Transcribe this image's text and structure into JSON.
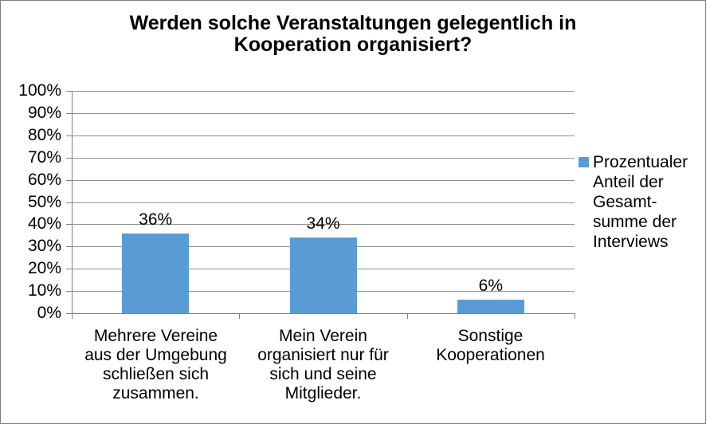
{
  "chart_data": {
    "type": "bar",
    "title": "Werden solche Veranstaltungen gelegentlich in\nKooperation organisiert?",
    "categories": [
      "Mehrere Vereine\naus der Umgebung\nschließen sich\nzusammen.",
      "Mein Verein\norganisiert nur für\nsich und seine\nMitglieder.",
      "Sonstige\nKooperationen"
    ],
    "series": [
      {
        "name": "Prozentualer Anteil der Gesamtsumme der Interviews",
        "values": [
          36,
          34,
          6
        ]
      }
    ],
    "value_labels": [
      "36%",
      "34%",
      "6%"
    ],
    "xlabel": "",
    "ylabel": "",
    "ylim": [
      0,
      100
    ],
    "ytick_step": 10,
    "ytick_labels": [
      "100%",
      "90%",
      "80%",
      "70%",
      "60%",
      "50%",
      "40%",
      "30%",
      "20%",
      "10%",
      "0%"
    ],
    "grid": true,
    "legend": {
      "position": "right",
      "label": "Prozentualer\nAnteil der\nGesamt-\nsumme der\nInterviews"
    },
    "colors": {
      "bar": "#5B9BD5",
      "gridline": "#909090",
      "axis": "#808080",
      "text": "#000000",
      "background": "#FFFFFF",
      "frame_border": "#808080"
    }
  }
}
